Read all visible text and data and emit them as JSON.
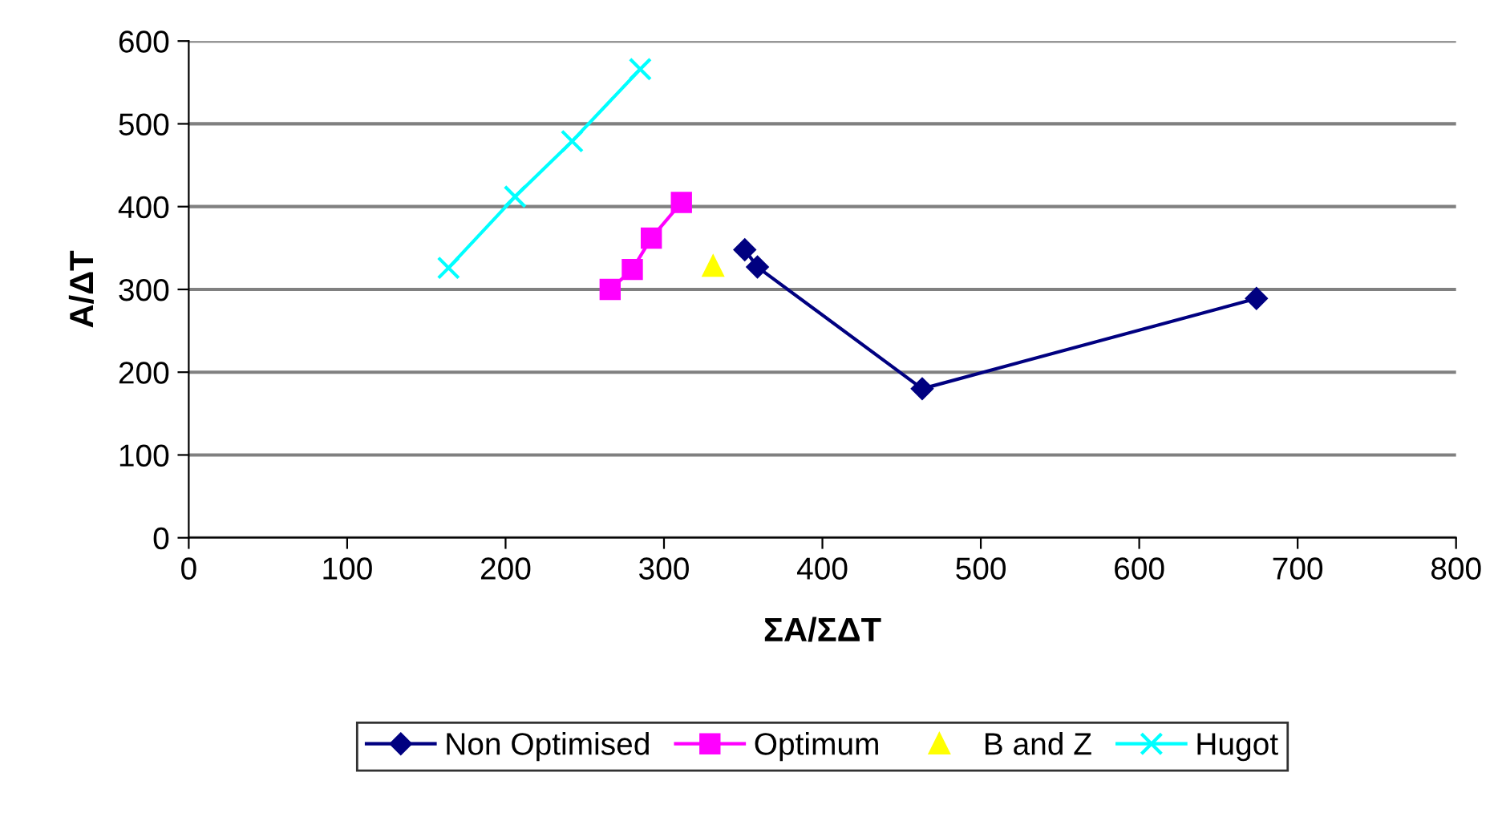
{
  "chart_data": {
    "type": "line",
    "xlabel": "ΣA/ΣΔT",
    "ylabel": "A/ΔT",
    "xlim": [
      0,
      800
    ],
    "xticks": [
      0,
      100,
      200,
      300,
      400,
      500,
      600,
      700,
      800
    ],
    "ylim": [
      0,
      600
    ],
    "yticks": [
      0,
      100,
      200,
      300,
      400,
      500,
      600
    ],
    "grid": "y",
    "legend": "bottom",
    "series": [
      {
        "name": "Non Optimised",
        "color": "#000080",
        "marker": "diamond",
        "x": [
          351,
          359,
          463,
          674
        ],
        "values": [
          348,
          327,
          180,
          289
        ]
      },
      {
        "name": "Optimum",
        "color": "#ff00ff",
        "marker": "square",
        "x": [
          266,
          280,
          292,
          311
        ],
        "values": [
          300,
          324,
          362,
          405
        ]
      },
      {
        "name": "B and Z",
        "color": "#ffff00",
        "marker": "triangle",
        "type": "scatter",
        "x": [
          331
        ],
        "values": [
          328
        ]
      },
      {
        "name": "Hugot",
        "color": "#00ffff",
        "marker": "cross",
        "x": [
          164,
          206,
          242,
          285
        ],
        "values": [
          326,
          412,
          479,
          566
        ]
      }
    ]
  }
}
